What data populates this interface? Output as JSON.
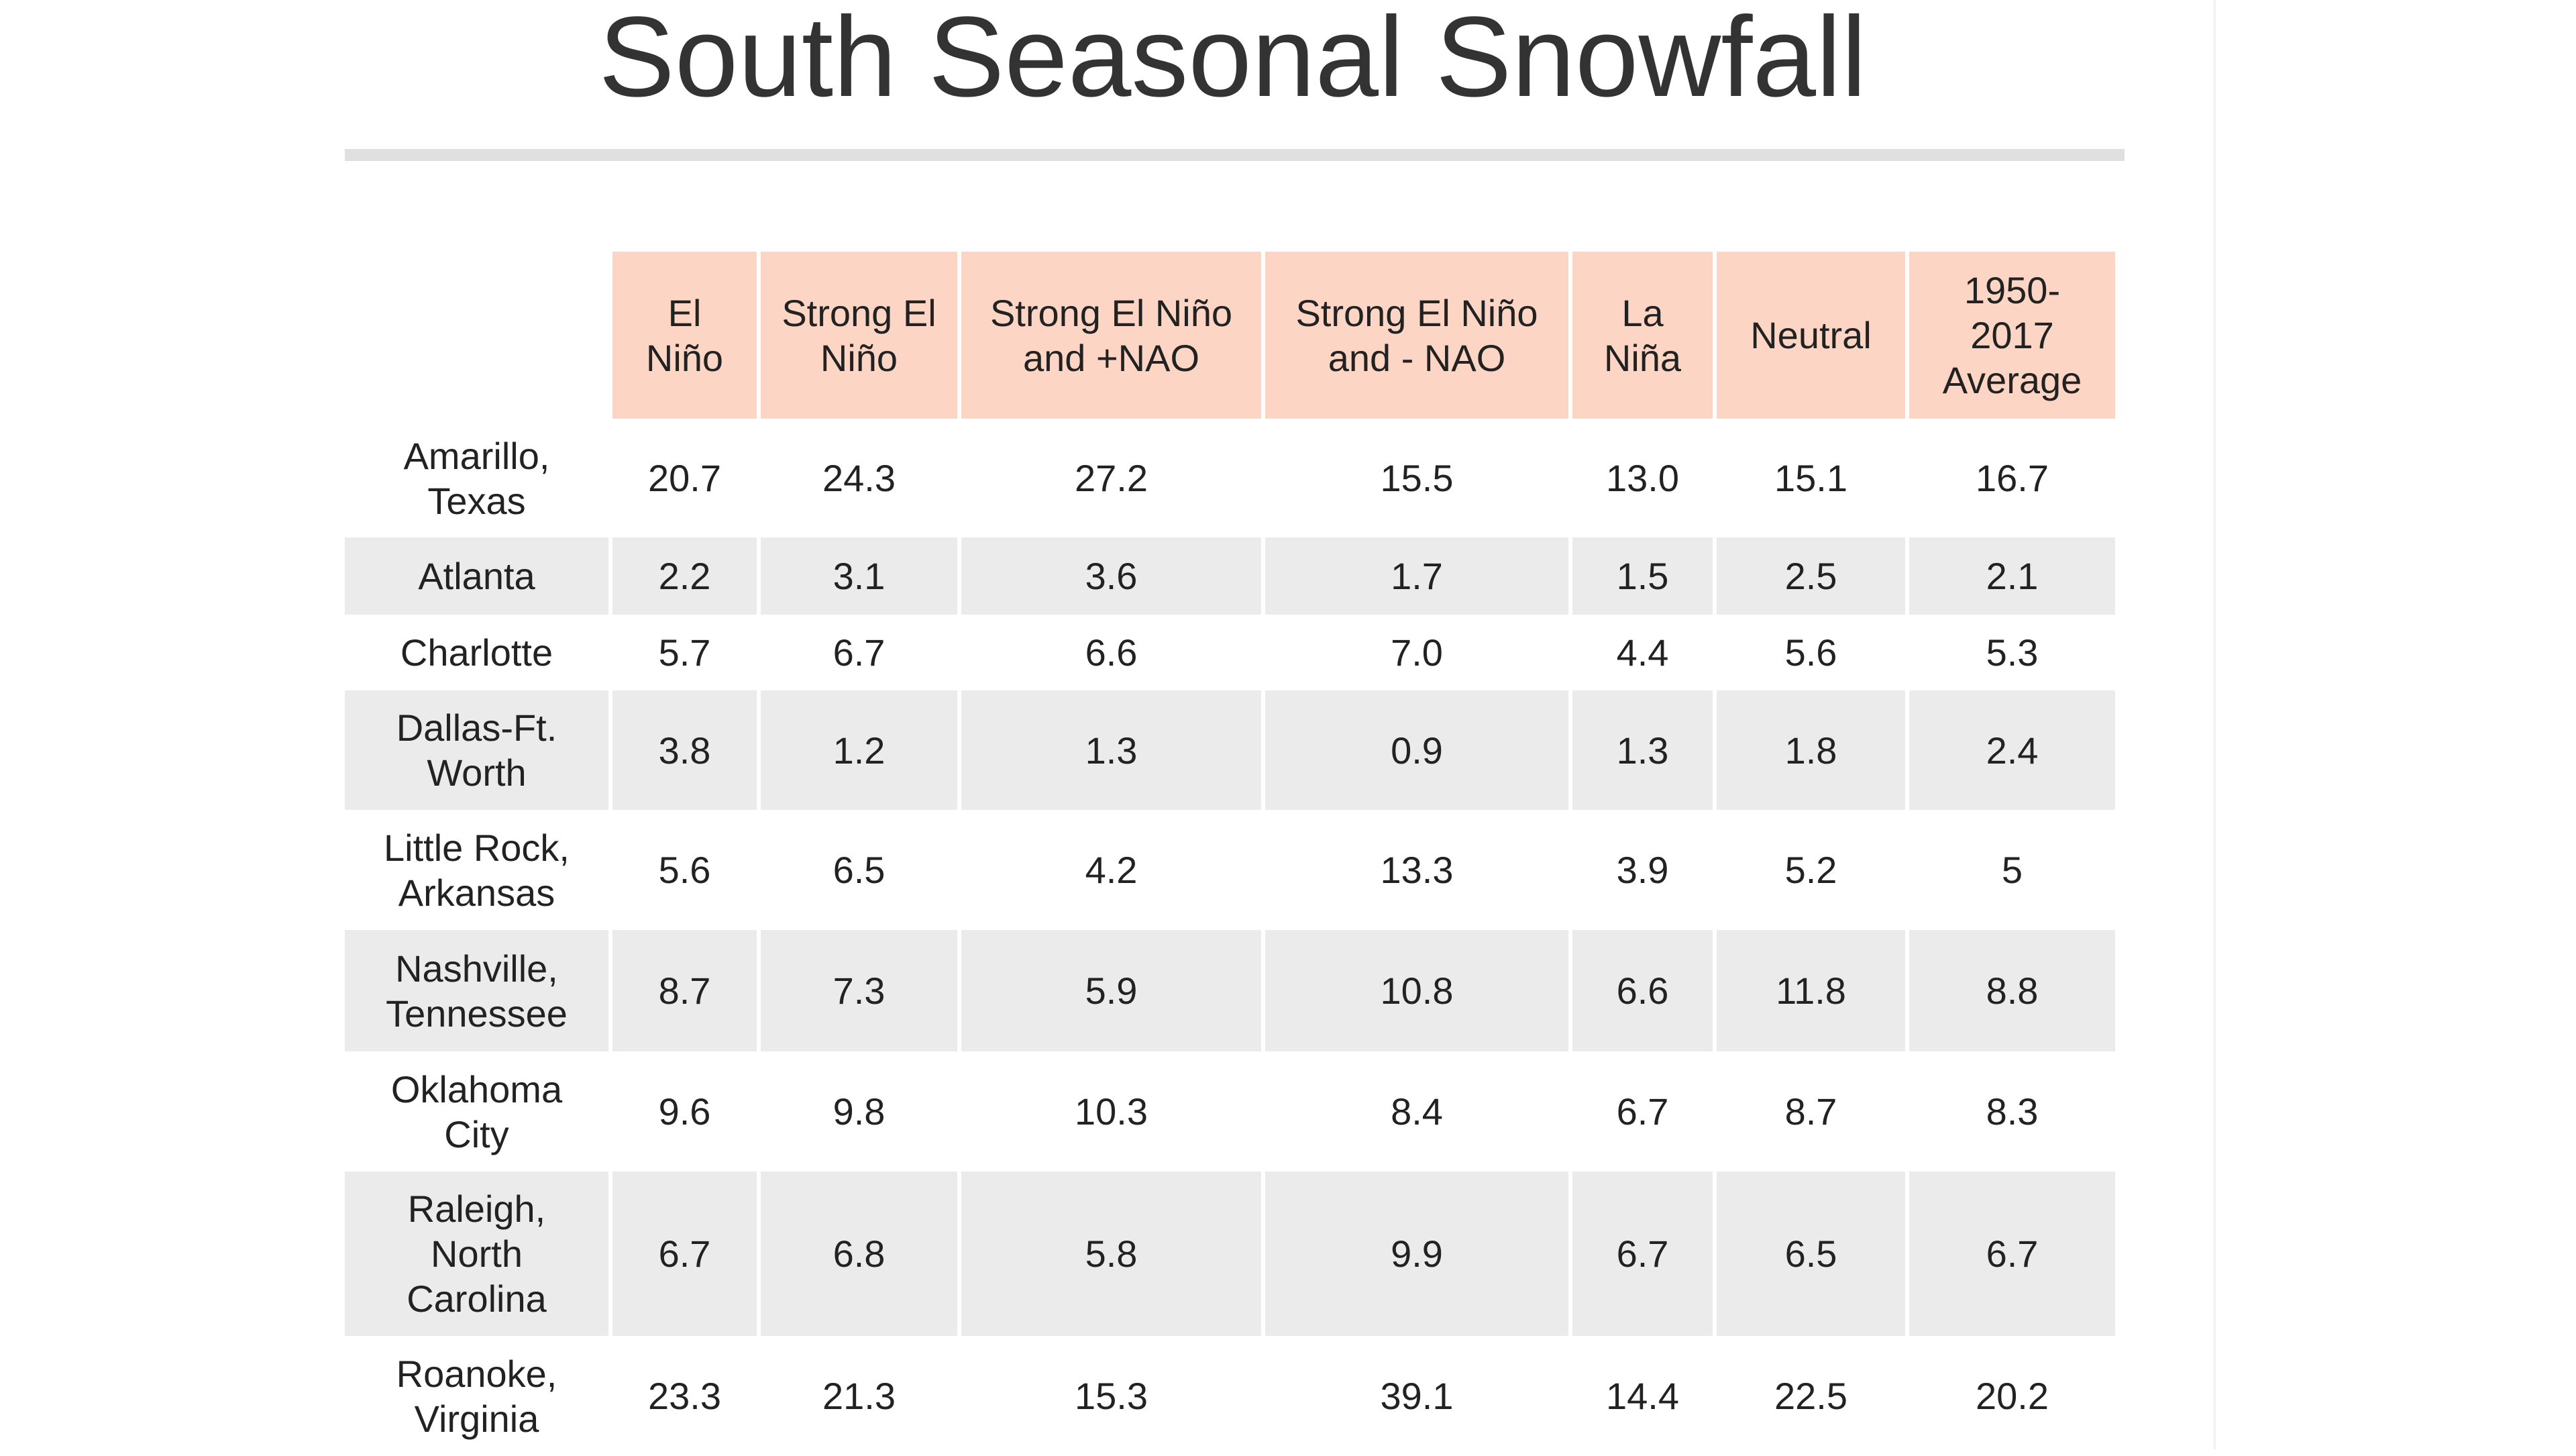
{
  "header": {
    "title": "South Seasonal Snowfall"
  },
  "table": {
    "columns": [
      "El Niño",
      "Strong El Niño",
      "Strong El Niño and +NAO",
      "Strong El Niño and - NAO",
      "La Niña",
      "Neutral",
      "1950-2017 Average"
    ],
    "rows": [
      {
        "label": "Amarillo, Texas",
        "values": [
          "20.7",
          "24.3",
          "27.2",
          "15.5",
          "13.0",
          "15.1",
          "16.7"
        ]
      },
      {
        "label": "Atlanta",
        "values": [
          "2.2",
          "3.1",
          "3.6",
          "1.7",
          "1.5",
          "2.5",
          "2.1"
        ]
      },
      {
        "label": "Charlotte",
        "values": [
          "5.7",
          "6.7",
          "6.6",
          "7.0",
          "4.4",
          "5.6",
          "5.3"
        ]
      },
      {
        "label": "Dallas-Ft. Worth",
        "values": [
          "3.8",
          "1.2",
          "1.3",
          "0.9",
          "1.3",
          "1.8",
          "2.4"
        ]
      },
      {
        "label": "Little Rock, Arkansas",
        "values": [
          "5.6",
          "6.5",
          "4.2",
          "13.3",
          "3.9",
          "5.2",
          "5"
        ]
      },
      {
        "label": "Nashville, Tennessee",
        "values": [
          "8.7",
          "7.3",
          "5.9",
          "10.8",
          "6.6",
          "11.8",
          "8.8"
        ]
      },
      {
        "label": "Oklahoma City",
        "values": [
          "9.6",
          "9.8",
          "10.3",
          "8.4",
          "6.7",
          "8.7",
          "8.3"
        ]
      },
      {
        "label": "Raleigh, North Carolina",
        "values": [
          "6.7",
          "6.8",
          "5.8",
          "9.9",
          "6.7",
          "6.5",
          "6.7"
        ]
      },
      {
        "label": "Roanoke, Virginia",
        "values": [
          "23.3",
          "21.3",
          "15.3",
          "39.1",
          "14.4",
          "22.5",
          "20.2"
        ]
      }
    ]
  }
}
